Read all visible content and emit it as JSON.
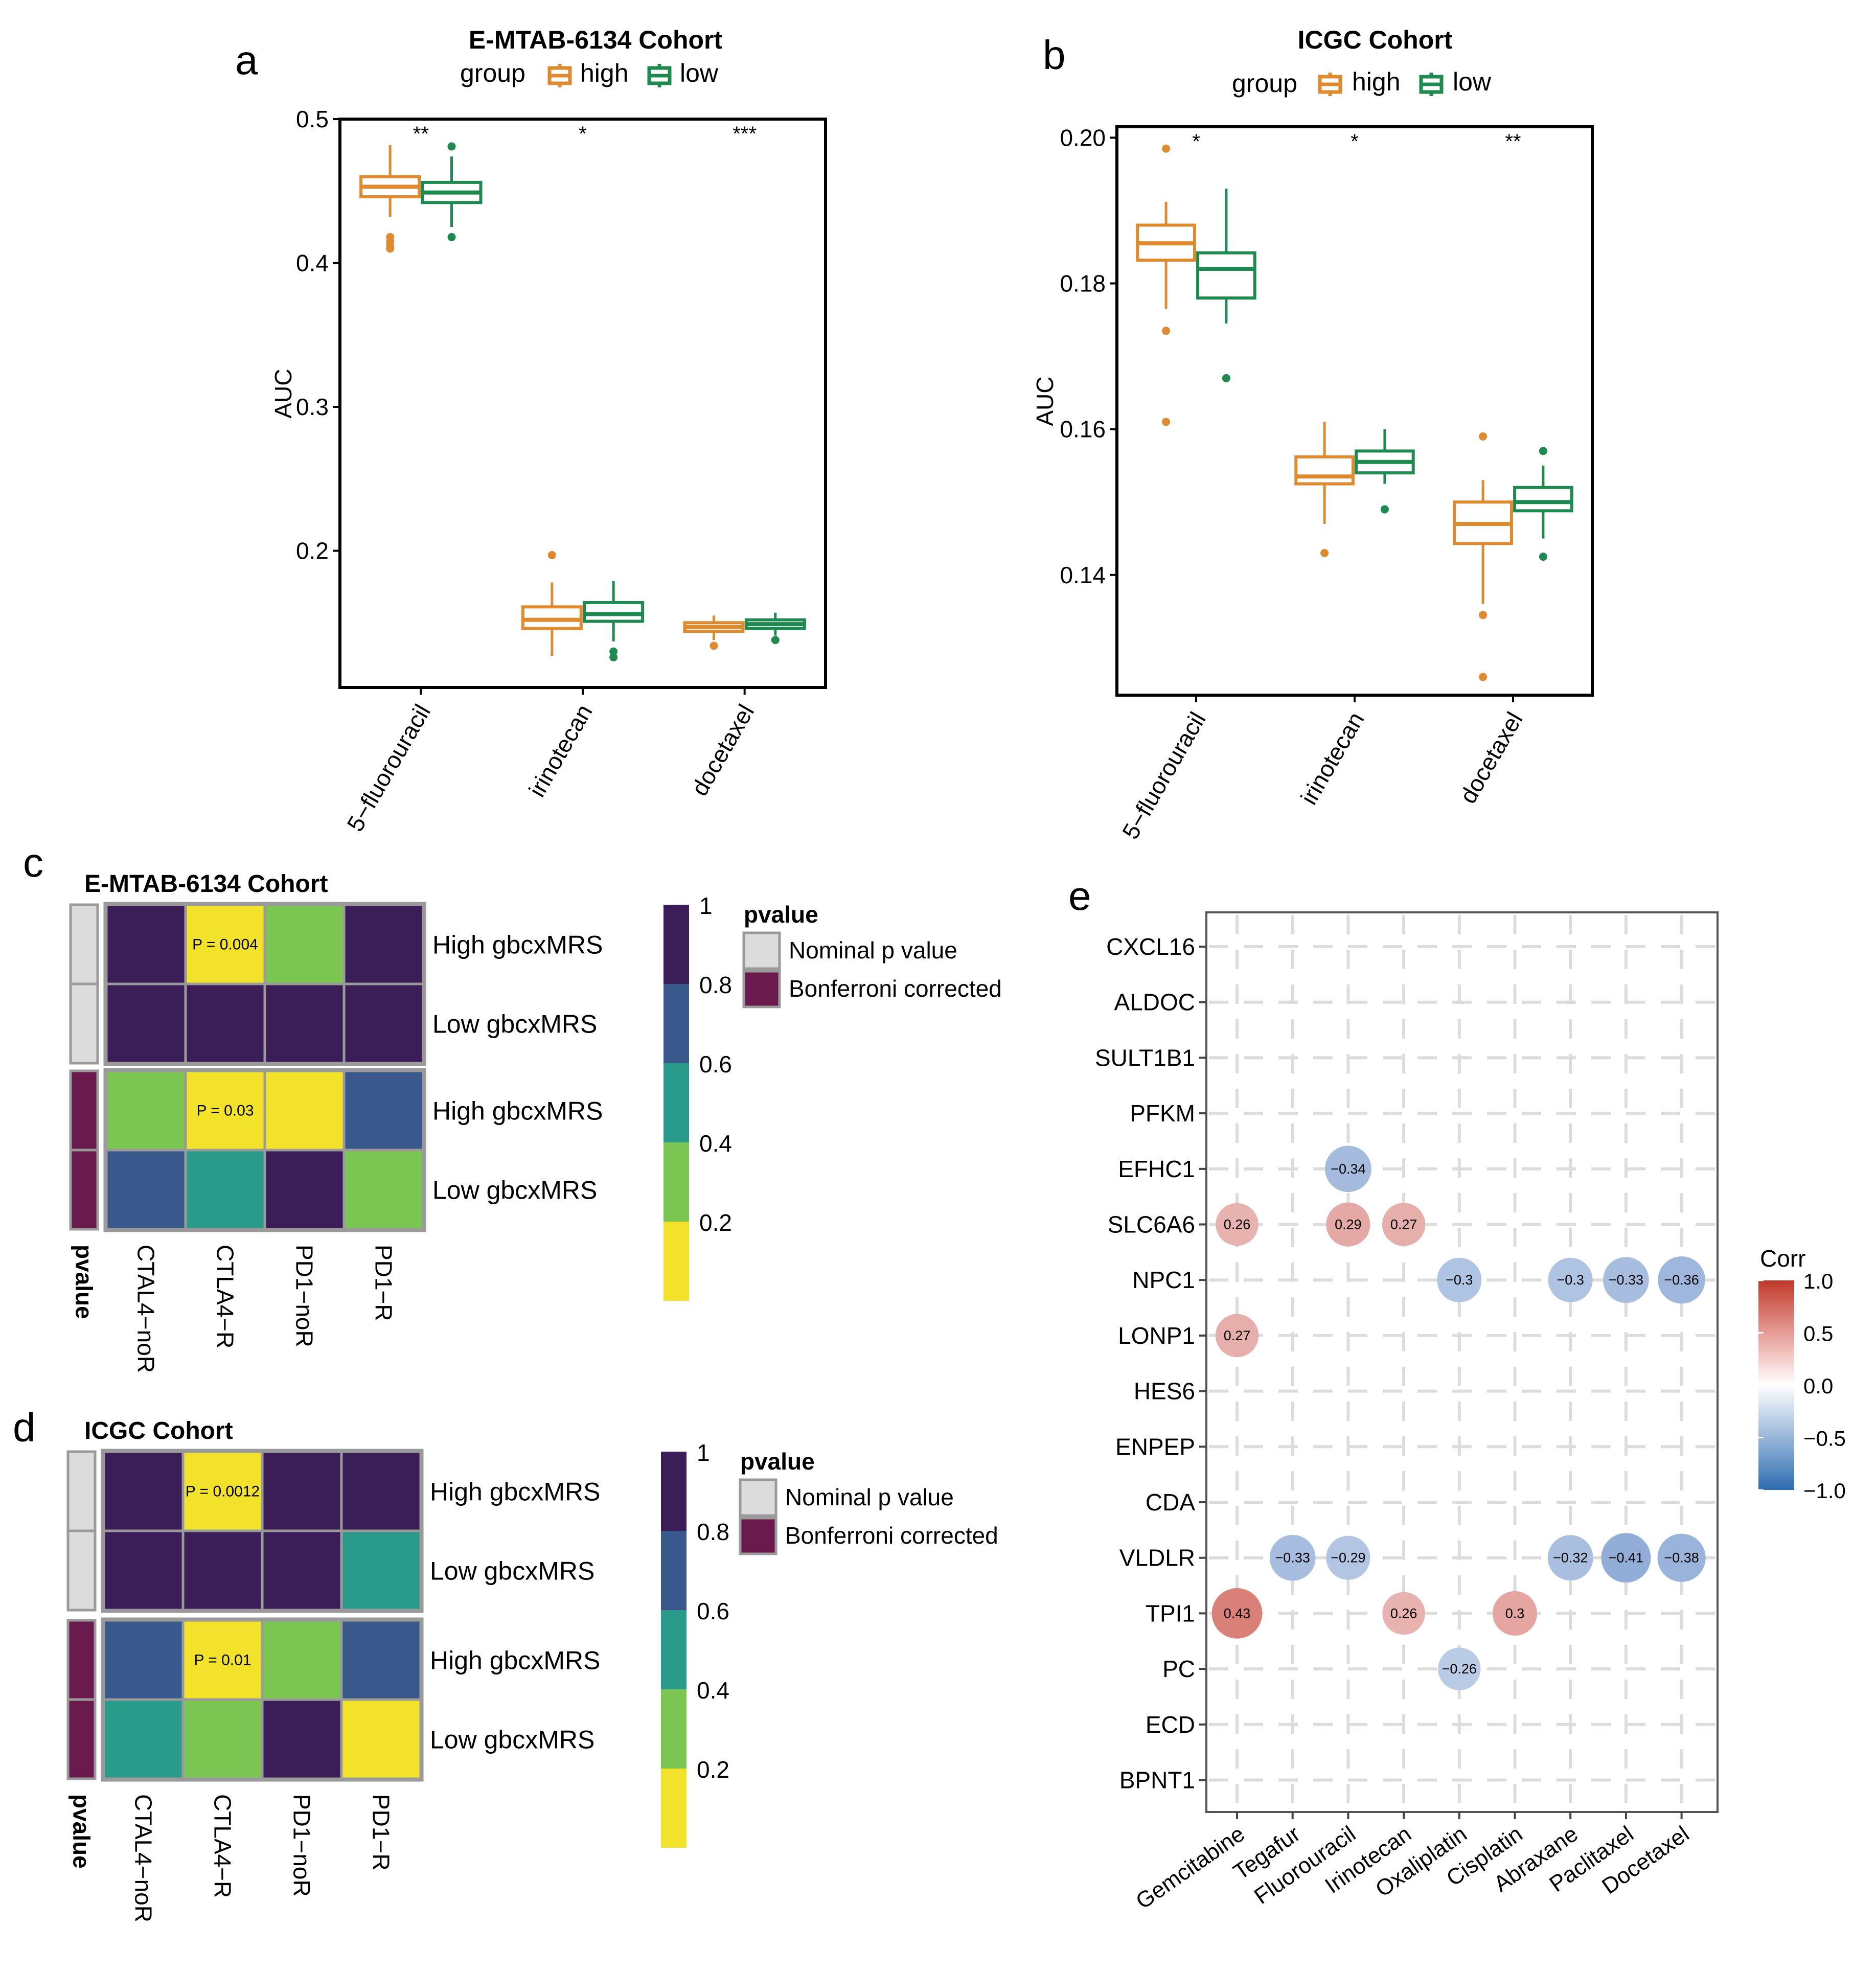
{
  "panels": {
    "a": "a",
    "b": "b",
    "c": "c",
    "d": "d",
    "e": "e"
  },
  "colors": {
    "high": "#DF8A2E",
    "low": "#1F8A4F",
    "frame": "#000000",
    "nominal": "#DCDCDC",
    "bonferroni": "#6B1A4E",
    "viridis": [
      "#F2E32A",
      "#7BC553",
      "#2A9A8A",
      "#39588C",
      "#3B1E57"
    ],
    "corr_pos": "#C0392B",
    "corr_neg": "#2E6DB0"
  },
  "chart_data": [
    {
      "id": "a",
      "type": "box",
      "title": "E-MTAB-6134 Cohort",
      "legend_title": "group",
      "legend_labels": [
        "high",
        "low"
      ],
      "ylabel": "AUC",
      "ylim": [
        0.105,
        0.5
      ],
      "yticks": [
        0.2,
        0.3,
        0.4,
        0.5
      ],
      "ytick_labels": [
        "0.2",
        "0.3",
        "0.4",
        "0.5"
      ],
      "categories": [
        "5−fluorouracil",
        "irinotecan",
        "docetaxel"
      ],
      "significance": [
        "**",
        "*",
        "***"
      ],
      "boxes": [
        {
          "category": "5−fluorouracil",
          "group": "high",
          "q1": 0.446,
          "median": 0.453,
          "q3": 0.46,
          "wlo": 0.432,
          "whi": 0.482,
          "outliers": [
            0.418,
            0.415,
            0.412,
            0.41
          ]
        },
        {
          "category": "5−fluorouracil",
          "group": "low",
          "q1": 0.442,
          "median": 0.449,
          "q3": 0.456,
          "wlo": 0.425,
          "whi": 0.474,
          "outliers": [
            0.418,
            0.481
          ]
        },
        {
          "category": "irinotecan",
          "group": "high",
          "q1": 0.146,
          "median": 0.152,
          "q3": 0.161,
          "wlo": 0.127,
          "whi": 0.178,
          "outliers": [
            0.197
          ]
        },
        {
          "category": "irinotecan",
          "group": "low",
          "q1": 0.151,
          "median": 0.156,
          "q3": 0.164,
          "wlo": 0.137,
          "whi": 0.179,
          "outliers": [
            0.13,
            0.126
          ]
        },
        {
          "category": "docetaxel",
          "group": "high",
          "q1": 0.144,
          "median": 0.147,
          "q3": 0.15,
          "wlo": 0.138,
          "whi": 0.155,
          "outliers": [
            0.134
          ]
        },
        {
          "category": "docetaxel",
          "group": "low",
          "q1": 0.146,
          "median": 0.149,
          "q3": 0.152,
          "wlo": 0.141,
          "whi": 0.157,
          "outliers": [
            0.138
          ]
        }
      ]
    },
    {
      "id": "b",
      "type": "box",
      "title": "ICGC Cohort",
      "legend_title": "group",
      "legend_labels": [
        "high",
        "low"
      ],
      "ylabel": "AUC",
      "ylim": [
        0.1235,
        0.2015
      ],
      "yticks": [
        0.14,
        0.16,
        0.18,
        0.2
      ],
      "ytick_labels": [
        "0.14",
        "0.16",
        "0.18",
        "0.20"
      ],
      "categories": [
        "5−fluorouracil",
        "irinotecan",
        "docetaxel"
      ],
      "significance": [
        "*",
        "*",
        "**"
      ],
      "boxes": [
        {
          "category": "5−fluorouracil",
          "group": "high",
          "q1": 0.1832,
          "median": 0.1855,
          "q3": 0.188,
          "wlo": 0.1765,
          "whi": 0.1912,
          "outliers": [
            0.1985,
            0.1735,
            0.161
          ]
        },
        {
          "category": "5−fluorouracil",
          "group": "low",
          "q1": 0.178,
          "median": 0.182,
          "q3": 0.1842,
          "wlo": 0.1745,
          "whi": 0.193,
          "outliers": [
            0.167
          ]
        },
        {
          "category": "irinotecan",
          "group": "high",
          "q1": 0.1525,
          "median": 0.1535,
          "q3": 0.1562,
          "wlo": 0.147,
          "whi": 0.161,
          "outliers": [
            0.143
          ]
        },
        {
          "category": "irinotecan",
          "group": "low",
          "q1": 0.154,
          "median": 0.1555,
          "q3": 0.157,
          "wlo": 0.1525,
          "whi": 0.16,
          "outliers": [
            0.149
          ]
        },
        {
          "category": "docetaxel",
          "group": "high",
          "q1": 0.1443,
          "median": 0.147,
          "q3": 0.15,
          "wlo": 0.136,
          "whi": 0.153,
          "outliers": [
            0.1345,
            0.159,
            0.126
          ]
        },
        {
          "category": "docetaxel",
          "group": "low",
          "q1": 0.1488,
          "median": 0.15,
          "q3": 0.152,
          "wlo": 0.145,
          "whi": 0.155,
          "outliers": [
            0.157,
            0.1425
          ]
        }
      ]
    },
    {
      "id": "c",
      "type": "heatmap",
      "title": "E-MTAB-6134 Cohort",
      "columns": [
        "CTAL4−noR",
        "CTLA4−R",
        "PD1−noR",
        "PD1−R"
      ],
      "rows": [
        "High gbcxMRS",
        "Low gbcxMRS",
        "High gbcxMRS",
        "Low gbcxMRS"
      ],
      "row_groups": [
        "nominal",
        "nominal",
        "bonferroni",
        "bonferroni"
      ],
      "values": [
        [
          1.0,
          0.004,
          0.3,
          1.0
        ],
        [
          1.0,
          1.0,
          1.0,
          1.0
        ],
        [
          0.3,
          0.03,
          0.05,
          0.7
        ],
        [
          0.7,
          0.5,
          1.0,
          0.3
        ]
      ],
      "annotations": [
        [
          "",
          "P = 0.004",
          "",
          ""
        ],
        [
          "",
          "",
          "",
          ""
        ],
        [
          "",
          "P = 0.03",
          "",
          ""
        ],
        [
          "",
          "",
          "",
          ""
        ]
      ],
      "annotation_label": "pvalue",
      "colorbar_ticks": [
        "1",
        "0.8",
        "0.6",
        "0.4",
        "0.2"
      ],
      "legend_title": "pvalue",
      "legend_items": [
        "Nominal p value",
        "Bonferroni corrected"
      ]
    },
    {
      "id": "d",
      "type": "heatmap",
      "title": "ICGC Cohort",
      "columns": [
        "CTAL4−noR",
        "CTLA4−R",
        "PD1−noR",
        "PD1−R"
      ],
      "rows": [
        "High gbcxMRS",
        "Low gbcxMRS",
        "High gbcxMRS",
        "Low gbcxMRS"
      ],
      "row_groups": [
        "nominal",
        "nominal",
        "bonferroni",
        "bonferroni"
      ],
      "values": [
        [
          1.0,
          0.0012,
          1.0,
          1.0
        ],
        [
          1.0,
          1.0,
          1.0,
          0.5
        ],
        [
          0.7,
          0.01,
          0.3,
          0.7
        ],
        [
          0.5,
          0.3,
          1.0,
          0.05
        ]
      ],
      "annotations": [
        [
          "",
          "P = 0.0012",
          "",
          ""
        ],
        [
          "",
          "",
          "",
          ""
        ],
        [
          "",
          "P = 0.01",
          "",
          ""
        ],
        [
          "",
          "",
          "",
          ""
        ]
      ],
      "annotation_label": "pvalue",
      "colorbar_ticks": [
        "1",
        "0.8",
        "0.6",
        "0.4",
        "0.2"
      ],
      "legend_title": "pvalue",
      "legend_items": [
        "Nominal p value",
        "Bonferroni corrected"
      ]
    },
    {
      "id": "e",
      "type": "scatter",
      "columns": [
        "Gemcitabine",
        "Tegafur",
        "Fluorouracil",
        "Irinotecan",
        "Oxaliplatin",
        "Cisplatin",
        "Abraxane",
        "Paclitaxel",
        "Docetaxel"
      ],
      "rows": [
        "CXCL16",
        "ALDOC",
        "SULT1B1",
        "PFKM",
        "EFHC1",
        "SLC6A6",
        "NPC1",
        "LONP1",
        "HES6",
        "ENPEP",
        "CDA",
        "VLDLR",
        "TPI1",
        "PC",
        "ECD",
        "BPNT1"
      ],
      "points": [
        {
          "gene": "EFHC1",
          "drug": "Fluorouracil",
          "corr": -0.34
        },
        {
          "gene": "SLC6A6",
          "drug": "Gemcitabine",
          "corr": 0.26
        },
        {
          "gene": "SLC6A6",
          "drug": "Fluorouracil",
          "corr": 0.29
        },
        {
          "gene": "SLC6A6",
          "drug": "Irinotecan",
          "corr": 0.27
        },
        {
          "gene": "NPC1",
          "drug": "Oxaliplatin",
          "corr": -0.3
        },
        {
          "gene": "NPC1",
          "drug": "Abraxane",
          "corr": -0.3
        },
        {
          "gene": "NPC1",
          "drug": "Paclitaxel",
          "corr": -0.33
        },
        {
          "gene": "NPC1",
          "drug": "Docetaxel",
          "corr": -0.36
        },
        {
          "gene": "LONP1",
          "drug": "Gemcitabine",
          "corr": 0.27
        },
        {
          "gene": "VLDLR",
          "drug": "Tegafur",
          "corr": -0.33
        },
        {
          "gene": "VLDLR",
          "drug": "Fluorouracil",
          "corr": -0.29
        },
        {
          "gene": "VLDLR",
          "drug": "Abraxane",
          "corr": -0.32
        },
        {
          "gene": "VLDLR",
          "drug": "Paclitaxel",
          "corr": -0.41
        },
        {
          "gene": "VLDLR",
          "drug": "Docetaxel",
          "corr": -0.38
        },
        {
          "gene": "TPI1",
          "drug": "Gemcitabine",
          "corr": 0.43
        },
        {
          "gene": "TPI1",
          "drug": "Irinotecan",
          "corr": 0.26
        },
        {
          "gene": "TPI1",
          "drug": "Cisplatin",
          "corr": 0.3
        },
        {
          "gene": "PC",
          "drug": "Oxaliplatin",
          "corr": -0.26
        }
      ],
      "legend_title": "Corr",
      "legend_ticks": [
        "1.0",
        "0.5",
        "0.0",
        "−0.5",
        "−1.0"
      ],
      "corr_range": [
        -1,
        1
      ]
    }
  ]
}
